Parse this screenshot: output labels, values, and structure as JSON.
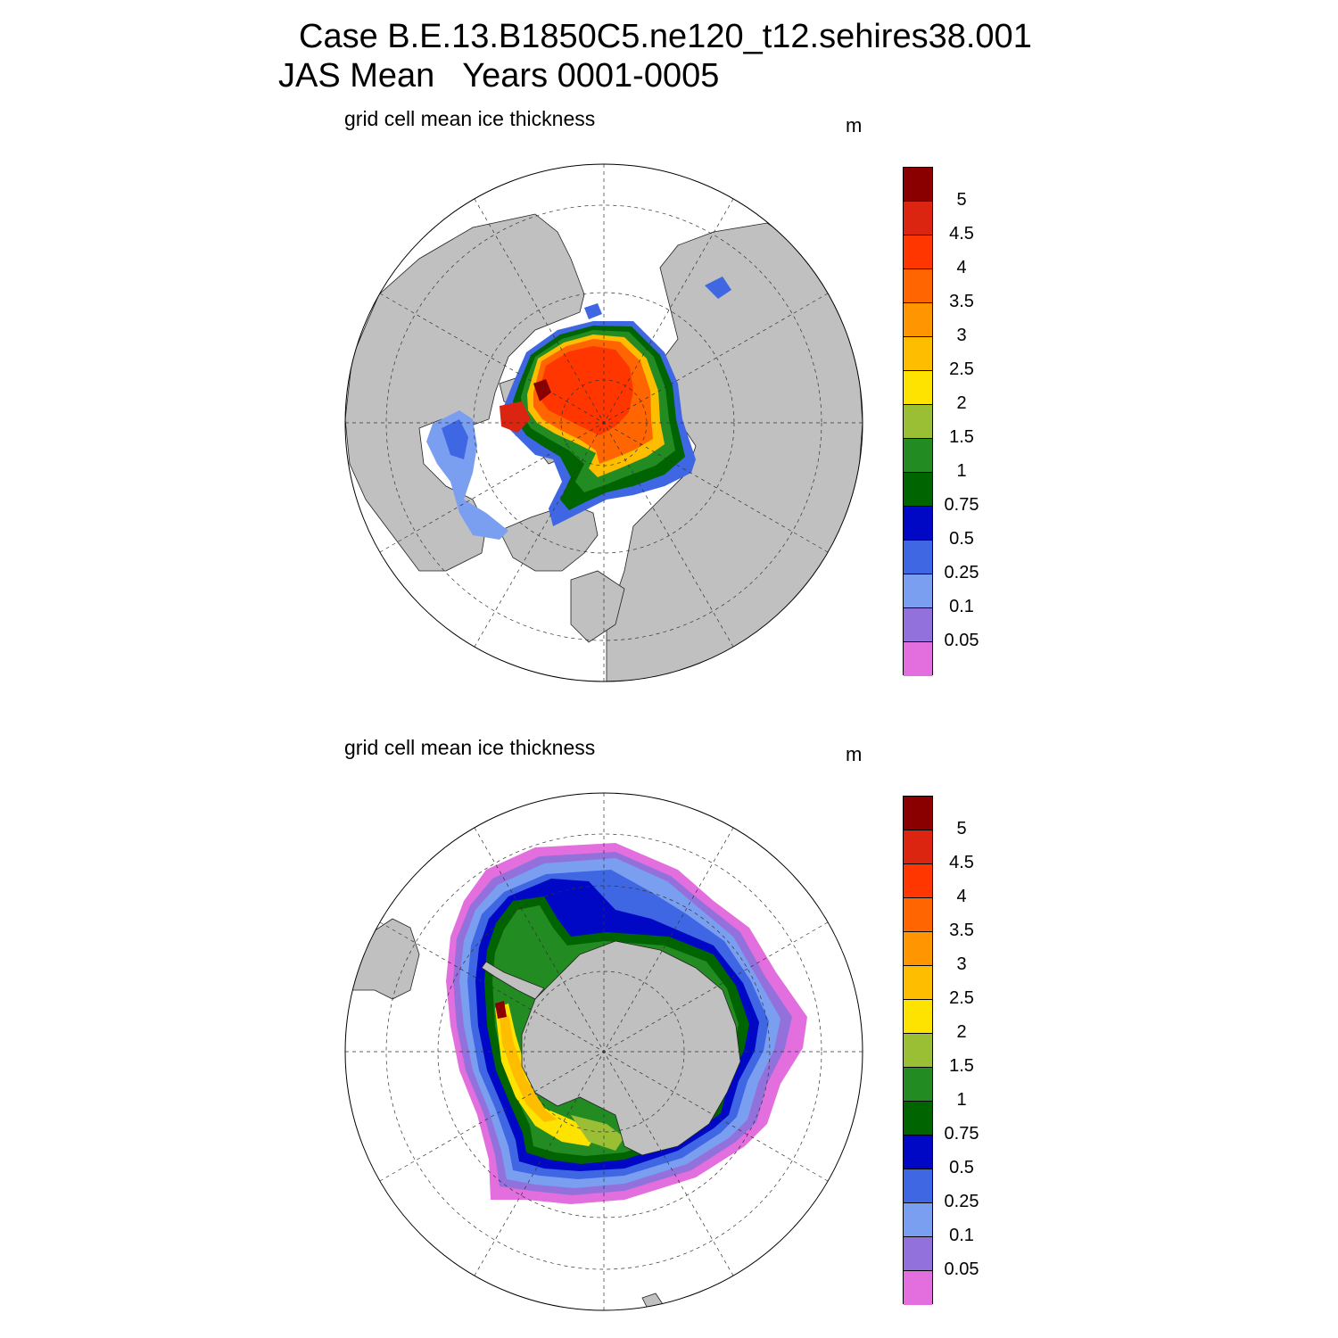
{
  "figure": {
    "title_line1": "Case B.E.13.B1850C5.ne120_t12.sehires38.001",
    "title_line2": "JAS Mean   Years 0001-0005"
  },
  "panels": [
    {
      "subtitle": "grid cell mean ice thickness",
      "units": "m",
      "hemisphere": "north"
    },
    {
      "subtitle": "grid cell mean ice thickness",
      "units": "m",
      "hemisphere": "south"
    }
  ],
  "colorbar": {
    "levels": [
      "0.05",
      "0.1",
      "0.25",
      "0.5",
      "0.75",
      "1",
      "1.5",
      "2",
      "2.5",
      "3",
      "3.5",
      "4",
      "4.5",
      "5"
    ],
    "colors": [
      "#e36fde",
      "#9371dc",
      "#7b9ff0",
      "#3f66e3",
      "#0008c5",
      "#006400",
      "#228b22",
      "#9bbf34",
      "#ffe300",
      "#ffbd00",
      "#ff9500",
      "#ff6500",
      "#ff3600",
      "#dc2510",
      "#8a0000"
    ]
  },
  "chart_data": {
    "type": "heatmap",
    "variable": "grid cell mean ice thickness",
    "units": "m",
    "contour_levels": [
      0.05,
      0.1,
      0.25,
      0.5,
      0.75,
      1,
      1.5,
      2,
      2.5,
      3,
      3.5,
      4,
      4.5,
      5
    ],
    "colors": [
      "#e36fde",
      "#9371dc",
      "#7b9ff0",
      "#3f66e3",
      "#0008c5",
      "#006400",
      "#228b22",
      "#9bbf34",
      "#ffe300",
      "#ffbd00",
      "#ff9500",
      "#ff6500",
      "#ff3600",
      "#dc2510",
      "#8a0000"
    ],
    "land_color": "#c0c0c0"
  }
}
